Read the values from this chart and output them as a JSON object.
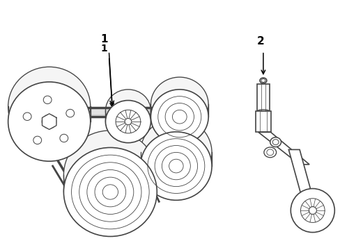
{
  "bg_color": "#ffffff",
  "line_color": "#444444",
  "label1": "1",
  "label2": "2",
  "figsize": [
    4.89,
    3.6
  ],
  "dpi": 100,
  "belt_lw": 2.5,
  "pulley_lw": 1.2,
  "groove_lw": 0.5,
  "n_grooves": 6,
  "belt_depth": 0.008
}
